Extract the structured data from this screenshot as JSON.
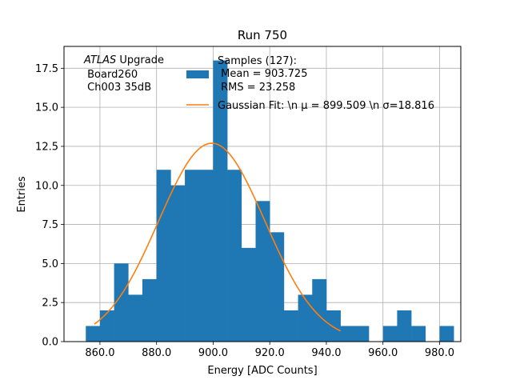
{
  "chart_data": {
    "type": "bar",
    "title": "Run 750",
    "xlabel": "Energy [ADC Counts]",
    "ylabel": "Entries",
    "xlim": [
      847.3,
      987.5
    ],
    "ylim": [
      0,
      18.9
    ],
    "xticks": [
      860,
      880,
      900,
      920,
      940,
      960,
      980
    ],
    "xtick_labels": [
      "860.0",
      "880.0",
      "900.0",
      "920.0",
      "940.0",
      "960.0",
      "980.0"
    ],
    "yticks": [
      0,
      2.5,
      5,
      7.5,
      10,
      12.5,
      15,
      17.5
    ],
    "ytick_labels": [
      "0.0",
      "2.5",
      "5.0",
      "7.5",
      "10.0",
      "12.5",
      "15.0",
      "17.5"
    ],
    "grid": true,
    "bin_width": 5,
    "bin_edges_start": 855,
    "counts": [
      1,
      2,
      5,
      3,
      4,
      11,
      10,
      11,
      11,
      18,
      11,
      6,
      9,
      7,
      2,
      3,
      4,
      2,
      1,
      1,
      0,
      1,
      2,
      1,
      0,
      1
    ],
    "bar_color": "#1f77b4",
    "fit": {
      "name": "Gaussian Fit",
      "mu": 899.509,
      "sigma": 18.816,
      "amplitude": 12.7,
      "x_range": [
        858,
        945
      ],
      "color": "#ff7f0e"
    },
    "legend": {
      "placement": "top-right",
      "entries": [
        {
          "name": "histogram",
          "lines": [
            "Samples (127):",
            " Mean = 903.725",
            " RMS = 23.258"
          ]
        },
        {
          "name": "fit",
          "lines": [
            "Gaussian Fit: \\n μ = 899.509 \\n σ=18.816"
          ]
        }
      ]
    },
    "annotation": {
      "lines": [
        {
          "italic": "ATLAS",
          "rest": " Upgrade"
        },
        {
          "italic": "",
          "rest": " Board260"
        },
        {
          "italic": "",
          "rest": " Ch003 35dB"
        }
      ]
    }
  }
}
